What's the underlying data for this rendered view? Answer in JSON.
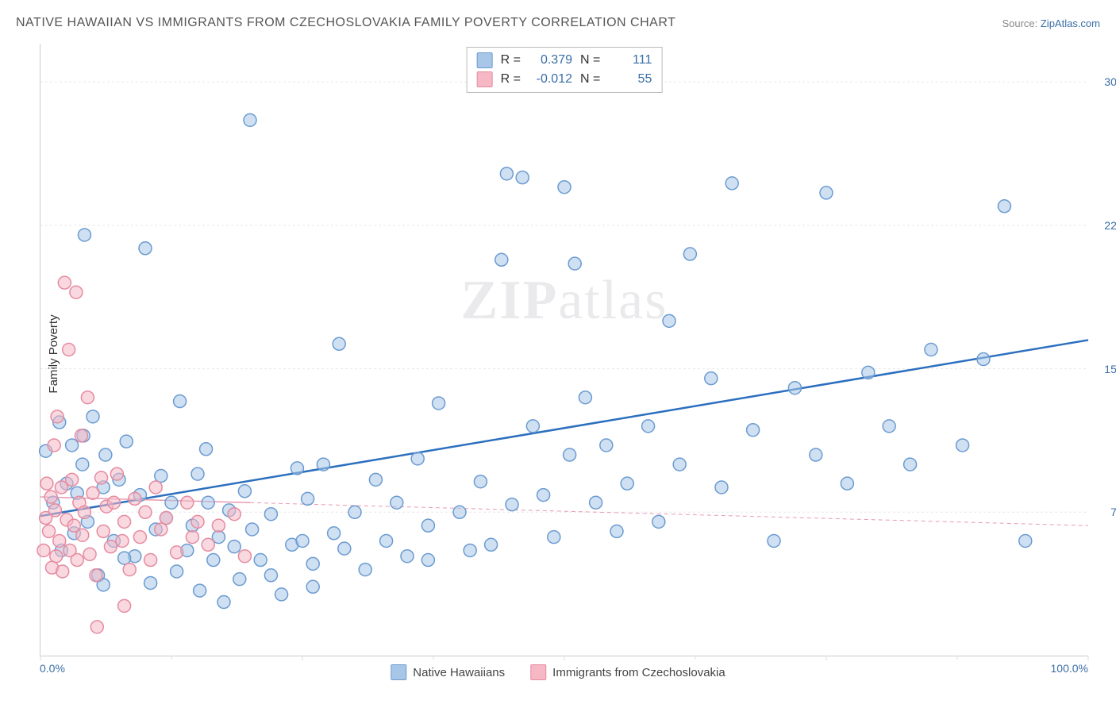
{
  "title": "NATIVE HAWAIIAN VS IMMIGRANTS FROM CZECHOSLOVAKIA FAMILY POVERTY CORRELATION CHART",
  "credit_prefix": "Source: ",
  "credit_link": "ZipAtlas.com",
  "ylabel": "Family Poverty",
  "watermark_z": "ZIP",
  "watermark_rest": "atlas",
  "chart": {
    "type": "scatter",
    "background_color": "#ffffff",
    "grid_color": "#e8e8e8",
    "xlim": [
      0,
      100
    ],
    "ylim": [
      0,
      32
    ],
    "xticks": [
      0,
      25,
      50,
      75,
      100
    ],
    "xtick_labels": [
      "0.0%",
      "",
      "",
      "",
      "100.0%"
    ],
    "yticks": [
      7.5,
      15.0,
      22.5,
      30.0
    ],
    "ytick_labels": [
      "7.5%",
      "15.0%",
      "22.5%",
      "30.0%"
    ],
    "marker_radius": 8,
    "marker_stroke_width": 1.5,
    "series": [
      {
        "name": "Native Hawaiians",
        "fill": "#a8c7e8",
        "fill_opacity": 0.55,
        "stroke": "#6b9bd1",
        "trend": {
          "color": "#2c6fbf",
          "width": 2.5,
          "dash": "none",
          "x1": 0,
          "y1": 7.3,
          "x2": 100,
          "y2": 16.5
        },
        "R": "0.379",
        "N": "111",
        "points": [
          [
            0.5,
            10.7
          ],
          [
            1.2,
            8.0
          ],
          [
            1.8,
            12.2
          ],
          [
            2.0,
            5.5
          ],
          [
            2.5,
            9.0
          ],
          [
            3,
            11.0
          ],
          [
            3.2,
            6.4
          ],
          [
            3.5,
            8.5
          ],
          [
            4,
            10.0
          ],
          [
            4.2,
            22.0
          ],
          [
            4.5,
            7.0
          ],
          [
            5,
            12.5
          ],
          [
            5.5,
            4.2
          ],
          [
            6,
            8.8
          ],
          [
            6.2,
            10.5
          ],
          [
            7,
            6.0
          ],
          [
            8.2,
            11.2
          ],
          [
            9,
            5.2
          ],
          [
            9.5,
            8.4
          ],
          [
            10,
            21.3
          ],
          [
            10.5,
            3.8
          ],
          [
            11,
            6.6
          ],
          [
            11.5,
            9.4
          ],
          [
            12,
            7.2
          ],
          [
            12.5,
            8.0
          ],
          [
            13,
            4.4
          ],
          [
            13.3,
            13.3
          ],
          [
            14,
            5.5
          ],
          [
            14.5,
            6.8
          ],
          [
            15,
            9.5
          ],
          [
            15.2,
            3.4
          ],
          [
            15.8,
            10.8
          ],
          [
            16,
            8.0
          ],
          [
            16.5,
            5.0
          ],
          [
            17,
            6.2
          ],
          [
            17.5,
            2.8
          ],
          [
            18,
            7.6
          ],
          [
            18.5,
            5.7
          ],
          [
            19,
            4.0
          ],
          [
            19.5,
            8.6
          ],
          [
            20,
            28.0
          ],
          [
            20.2,
            6.6
          ],
          [
            21,
            5.0
          ],
          [
            22,
            7.4
          ],
          [
            23,
            3.2
          ],
          [
            24,
            5.8
          ],
          [
            24.5,
            9.8
          ],
          [
            25,
            6.0
          ],
          [
            25.5,
            8.2
          ],
          [
            26,
            4.8
          ],
          [
            27,
            10.0
          ],
          [
            28,
            6.4
          ],
          [
            28.5,
            16.3
          ],
          [
            29,
            5.6
          ],
          [
            30,
            7.5
          ],
          [
            31,
            4.5
          ],
          [
            32,
            9.2
          ],
          [
            33,
            6.0
          ],
          [
            34,
            8.0
          ],
          [
            35,
            5.2
          ],
          [
            36,
            10.3
          ],
          [
            37,
            6.8
          ],
          [
            38,
            13.2
          ],
          [
            40,
            7.5
          ],
          [
            41,
            5.5
          ],
          [
            42,
            9.1
          ],
          [
            43,
            5.8
          ],
          [
            44,
            20.7
          ],
          [
            44.5,
            25.2
          ],
          [
            45,
            7.9
          ],
          [
            46,
            25.0
          ],
          [
            47,
            12.0
          ],
          [
            48,
            8.4
          ],
          [
            49,
            6.2
          ],
          [
            50,
            24.5
          ],
          [
            50.5,
            10.5
          ],
          [
            51,
            20.5
          ],
          [
            52,
            13.5
          ],
          [
            53,
            8.0
          ],
          [
            54,
            11.0
          ],
          [
            55,
            6.5
          ],
          [
            56,
            9.0
          ],
          [
            58,
            12.0
          ],
          [
            59,
            7.0
          ],
          [
            60,
            17.5
          ],
          [
            61,
            10.0
          ],
          [
            62,
            21.0
          ],
          [
            64,
            14.5
          ],
          [
            65,
            8.8
          ],
          [
            66,
            24.7
          ],
          [
            68,
            11.8
          ],
          [
            70,
            6.0
          ],
          [
            72,
            14.0
          ],
          [
            74,
            10.5
          ],
          [
            75,
            24.2
          ],
          [
            77,
            9.0
          ],
          [
            79,
            14.8
          ],
          [
            81,
            12.0
          ],
          [
            83,
            10.0
          ],
          [
            85,
            16.0
          ],
          [
            88,
            11.0
          ],
          [
            90,
            15.5
          ],
          [
            92,
            23.5
          ],
          [
            94,
            6.0
          ],
          [
            8,
            5.1
          ],
          [
            6,
            3.7
          ],
          [
            22,
            4.2
          ],
          [
            26,
            3.6
          ],
          [
            37,
            5.0
          ],
          [
            4.1,
            11.5
          ],
          [
            7.5,
            9.2
          ]
        ]
      },
      {
        "name": "Immigrants from Czechoslovakia",
        "fill": "#f5b8c4",
        "fill_opacity": 0.55,
        "stroke": "#e58ba0",
        "trend": {
          "color": "#e89ab0",
          "width": 1.5,
          "dash": "5,4",
          "x1": 0,
          "y1": 8.3,
          "x2": 100,
          "y2": 6.8
        },
        "trend_solid_to": 20,
        "R": "-0.012",
        "N": "55",
        "points": [
          [
            0.3,
            5.5
          ],
          [
            0.5,
            7.2
          ],
          [
            0.6,
            9.0
          ],
          [
            0.8,
            6.5
          ],
          [
            1.0,
            8.3
          ],
          [
            1.1,
            4.6
          ],
          [
            1.3,
            11.0
          ],
          [
            1.4,
            7.6
          ],
          [
            1.5,
            5.2
          ],
          [
            1.6,
            12.5
          ],
          [
            1.8,
            6.0
          ],
          [
            2.0,
            8.8
          ],
          [
            2.1,
            4.4
          ],
          [
            2.3,
            19.5
          ],
          [
            2.5,
            7.1
          ],
          [
            2.7,
            16.0
          ],
          [
            2.8,
            5.5
          ],
          [
            3.0,
            9.2
          ],
          [
            3.2,
            6.8
          ],
          [
            3.4,
            19.0
          ],
          [
            3.5,
            5.0
          ],
          [
            3.7,
            8.0
          ],
          [
            3.9,
            11.5
          ],
          [
            4.0,
            6.3
          ],
          [
            4.2,
            7.5
          ],
          [
            4.5,
            13.5
          ],
          [
            4.7,
            5.3
          ],
          [
            5.0,
            8.5
          ],
          [
            5.3,
            4.2
          ],
          [
            5.8,
            9.3
          ],
          [
            6.0,
            6.5
          ],
          [
            6.3,
            7.8
          ],
          [
            6.7,
            5.7
          ],
          [
            7.0,
            8.0
          ],
          [
            7.3,
            9.5
          ],
          [
            7.8,
            6.0
          ],
          [
            8.0,
            7.0
          ],
          [
            8.5,
            4.5
          ],
          [
            9.0,
            8.2
          ],
          [
            9.5,
            6.2
          ],
          [
            10.0,
            7.5
          ],
          [
            10.5,
            5.0
          ],
          [
            11.0,
            8.8
          ],
          [
            11.5,
            6.6
          ],
          [
            12.0,
            7.2
          ],
          [
            13.0,
            5.4
          ],
          [
            14.0,
            8.0
          ],
          [
            14.5,
            6.2
          ],
          [
            15.0,
            7.0
          ],
          [
            16.0,
            5.8
          ],
          [
            17.0,
            6.8
          ],
          [
            18.5,
            7.4
          ],
          [
            19.5,
            5.2
          ],
          [
            5.4,
            1.5
          ],
          [
            8,
            2.6
          ]
        ]
      }
    ],
    "legend_top": [
      {
        "swatch_fill": "#a8c7e8",
        "swatch_stroke": "#6b9bd1",
        "R_label": "R =",
        "R": "0.379",
        "N_label": "N =",
        "N": "111"
      },
      {
        "swatch_fill": "#f5b8c4",
        "swatch_stroke": "#e58ba0",
        "R_label": "R =",
        "R": "-0.012",
        "N_label": "N =",
        "N": "55"
      }
    ],
    "legend_bottom": [
      {
        "swatch_fill": "#a8c7e8",
        "swatch_stroke": "#6b9bd1",
        "label": "Native Hawaiians"
      },
      {
        "swatch_fill": "#f5b8c4",
        "swatch_stroke": "#e58ba0",
        "label": "Immigrants from Czechoslovakia"
      }
    ]
  }
}
